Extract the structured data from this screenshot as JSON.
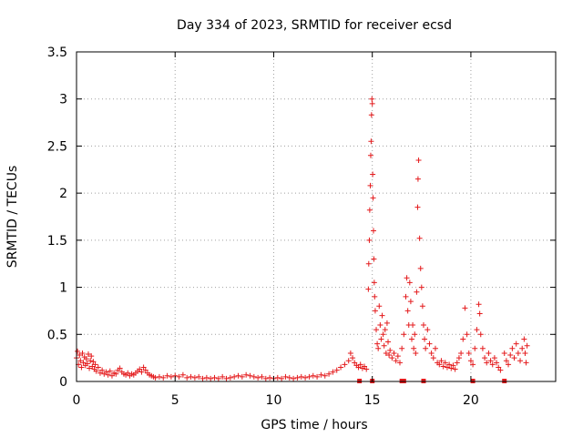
{
  "chart_data": {
    "type": "scatter",
    "title": "Day 334 of 2023, SRMTID for receiver ecsd",
    "xlabel": "GPS time / hours",
    "ylabel": "SRMTID / TECUs",
    "xlim": [
      0,
      24.3
    ],
    "ylim": [
      0,
      3.5
    ],
    "x_ticks": [
      0,
      5,
      10,
      15,
      20
    ],
    "x_tick_labels": [
      "0",
      "5",
      "10",
      "15",
      "20"
    ],
    "y_ticks": [
      0,
      0.5,
      1,
      1.5,
      2,
      2.5,
      3,
      3.5
    ],
    "y_tick_labels": [
      "0",
      "0.5",
      "1",
      "1.5",
      "2",
      "2.5",
      "3",
      "3.5"
    ],
    "grid": true,
    "marker": "+",
    "marker_color": "#e41a1c",
    "flag_color": "#e41a1c",
    "series": [
      {
        "name": "SRMTID",
        "points": [
          [
            0.0,
            0.25
          ],
          [
            0.05,
            0.32
          ],
          [
            0.1,
            0.18
          ],
          [
            0.15,
            0.28
          ],
          [
            0.2,
            0.22
          ],
          [
            0.25,
            0.15
          ],
          [
            0.3,
            0.3
          ],
          [
            0.35,
            0.2
          ],
          [
            0.4,
            0.26
          ],
          [
            0.45,
            0.17
          ],
          [
            0.5,
            0.24
          ],
          [
            0.55,
            0.19
          ],
          [
            0.6,
            0.29
          ],
          [
            0.65,
            0.14
          ],
          [
            0.7,
            0.22
          ],
          [
            0.75,
            0.27
          ],
          [
            0.8,
            0.16
          ],
          [
            0.85,
            0.21
          ],
          [
            0.9,
            0.13
          ],
          [
            0.95,
            0.18
          ],
          [
            1.0,
            0.11
          ],
          [
            1.1,
            0.15
          ],
          [
            1.2,
            0.09
          ],
          [
            1.3,
            0.12
          ],
          [
            1.4,
            0.08
          ],
          [
            1.5,
            0.1
          ],
          [
            1.6,
            0.07
          ],
          [
            1.7,
            0.11
          ],
          [
            1.8,
            0.06
          ],
          [
            1.9,
            0.09
          ],
          [
            2.0,
            0.08
          ],
          [
            2.1,
            0.12
          ],
          [
            2.2,
            0.14
          ],
          [
            2.3,
            0.1
          ],
          [
            2.4,
            0.08
          ],
          [
            2.5,
            0.07
          ],
          [
            2.6,
            0.09
          ],
          [
            2.7,
            0.06
          ],
          [
            2.8,
            0.08
          ],
          [
            2.9,
            0.07
          ],
          [
            3.0,
            0.09
          ],
          [
            3.1,
            0.11
          ],
          [
            3.2,
            0.13
          ],
          [
            3.3,
            0.1
          ],
          [
            3.4,
            0.15
          ],
          [
            3.5,
            0.12
          ],
          [
            3.6,
            0.09
          ],
          [
            3.7,
            0.07
          ],
          [
            3.8,
            0.06
          ],
          [
            3.9,
            0.05
          ],
          [
            4.0,
            0.04
          ],
          [
            4.2,
            0.05
          ],
          [
            4.4,
            0.04
          ],
          [
            4.6,
            0.06
          ],
          [
            4.8,
            0.05
          ],
          [
            5.0,
            0.06
          ],
          [
            5.2,
            0.05
          ],
          [
            5.4,
            0.07
          ],
          [
            5.6,
            0.04
          ],
          [
            5.8,
            0.05
          ],
          [
            6.0,
            0.04
          ],
          [
            6.2,
            0.05
          ],
          [
            6.4,
            0.03
          ],
          [
            6.6,
            0.04
          ],
          [
            6.8,
            0.03
          ],
          [
            7.0,
            0.04
          ],
          [
            7.2,
            0.03
          ],
          [
            7.4,
            0.05
          ],
          [
            7.6,
            0.03
          ],
          [
            7.8,
            0.04
          ],
          [
            8.0,
            0.05
          ],
          [
            8.2,
            0.06
          ],
          [
            8.4,
            0.05
          ],
          [
            8.6,
            0.07
          ],
          [
            8.8,
            0.06
          ],
          [
            9.0,
            0.05
          ],
          [
            9.2,
            0.04
          ],
          [
            9.4,
            0.05
          ],
          [
            9.6,
            0.03
          ],
          [
            9.8,
            0.04
          ],
          [
            10.0,
            0.03
          ],
          [
            10.2,
            0.04
          ],
          [
            10.4,
            0.03
          ],
          [
            10.6,
            0.05
          ],
          [
            10.8,
            0.04
          ],
          [
            11.0,
            0.03
          ],
          [
            11.2,
            0.04
          ],
          [
            11.4,
            0.05
          ],
          [
            11.6,
            0.04
          ],
          [
            11.8,
            0.05
          ],
          [
            12.0,
            0.06
          ],
          [
            12.2,
            0.05
          ],
          [
            12.4,
            0.07
          ],
          [
            12.6,
            0.06
          ],
          [
            12.8,
            0.08
          ],
          [
            13.0,
            0.1
          ],
          [
            13.2,
            0.12
          ],
          [
            13.4,
            0.15
          ],
          [
            13.6,
            0.18
          ],
          [
            13.8,
            0.22
          ],
          [
            13.9,
            0.3
          ],
          [
            14.0,
            0.25
          ],
          [
            14.1,
            0.2
          ],
          [
            14.2,
            0.17
          ],
          [
            14.3,
            0.15
          ],
          [
            14.4,
            0.18
          ],
          [
            14.5,
            0.14
          ],
          [
            14.6,
            0.16
          ],
          [
            14.7,
            0.13
          ],
          [
            14.8,
            0.98
          ],
          [
            14.82,
            1.25
          ],
          [
            14.85,
            1.5
          ],
          [
            14.87,
            1.82
          ],
          [
            14.9,
            2.08
          ],
          [
            14.92,
            2.4
          ],
          [
            14.94,
            2.55
          ],
          [
            14.96,
            2.83
          ],
          [
            14.98,
            3.0
          ],
          [
            15.0,
            2.95
          ],
          [
            15.02,
            2.2
          ],
          [
            15.04,
            1.95
          ],
          [
            15.06,
            1.6
          ],
          [
            15.08,
            1.3
          ],
          [
            15.1,
            1.05
          ],
          [
            15.12,
            0.9
          ],
          [
            15.15,
            0.75
          ],
          [
            15.2,
            0.55
          ],
          [
            15.25,
            0.4
          ],
          [
            15.3,
            0.35
          ],
          [
            15.35,
            0.8
          ],
          [
            15.4,
            0.6
          ],
          [
            15.45,
            0.45
          ],
          [
            15.5,
            0.7
          ],
          [
            15.55,
            0.5
          ],
          [
            15.6,
            0.38
          ],
          [
            15.65,
            0.55
          ],
          [
            15.7,
            0.3
          ],
          [
            15.75,
            0.62
          ],
          [
            15.8,
            0.42
          ],
          [
            15.85,
            0.28
          ],
          [
            15.9,
            0.33
          ],
          [
            16.0,
            0.25
          ],
          [
            16.1,
            0.3
          ],
          [
            16.2,
            0.22
          ],
          [
            16.3,
            0.27
          ],
          [
            16.4,
            0.2
          ],
          [
            16.5,
            0.35
          ],
          [
            16.6,
            0.5
          ],
          [
            16.7,
            0.9
          ],
          [
            16.75,
            1.1
          ],
          [
            16.8,
            0.75
          ],
          [
            16.85,
            0.6
          ],
          [
            16.9,
            1.05
          ],
          [
            16.95,
            0.85
          ],
          [
            17.0,
            0.45
          ],
          [
            17.05,
            0.6
          ],
          [
            17.1,
            0.35
          ],
          [
            17.15,
            0.5
          ],
          [
            17.2,
            0.3
          ],
          [
            17.25,
            0.95
          ],
          [
            17.3,
            1.85
          ],
          [
            17.32,
            2.15
          ],
          [
            17.35,
            2.35
          ],
          [
            17.4,
            1.52
          ],
          [
            17.45,
            1.2
          ],
          [
            17.5,
            1.0
          ],
          [
            17.55,
            0.8
          ],
          [
            17.6,
            0.6
          ],
          [
            17.65,
            0.45
          ],
          [
            17.7,
            0.35
          ],
          [
            17.8,
            0.55
          ],
          [
            17.9,
            0.4
          ],
          [
            18.0,
            0.3
          ],
          [
            18.1,
            0.25
          ],
          [
            18.2,
            0.35
          ],
          [
            18.3,
            0.2
          ],
          [
            18.4,
            0.18
          ],
          [
            18.5,
            0.22
          ],
          [
            18.6,
            0.16
          ],
          [
            18.7,
            0.2
          ],
          [
            18.8,
            0.15
          ],
          [
            18.9,
            0.18
          ],
          [
            19.0,
            0.14
          ],
          [
            19.1,
            0.17
          ],
          [
            19.2,
            0.13
          ],
          [
            19.3,
            0.2
          ],
          [
            19.4,
            0.25
          ],
          [
            19.5,
            0.3
          ],
          [
            19.6,
            0.45
          ],
          [
            19.7,
            0.78
          ],
          [
            19.8,
            0.5
          ],
          [
            19.9,
            0.3
          ],
          [
            20.0,
            0.22
          ],
          [
            20.1,
            0.18
          ],
          [
            20.2,
            0.35
          ],
          [
            20.3,
            0.55
          ],
          [
            20.4,
            0.82
          ],
          [
            20.45,
            0.72
          ],
          [
            20.5,
            0.5
          ],
          [
            20.6,
            0.35
          ],
          [
            20.7,
            0.25
          ],
          [
            20.8,
            0.2
          ],
          [
            20.9,
            0.3
          ],
          [
            21.0,
            0.22
          ],
          [
            21.1,
            0.18
          ],
          [
            21.2,
            0.25
          ],
          [
            21.3,
            0.2
          ],
          [
            21.4,
            0.15
          ],
          [
            21.5,
            0.12
          ],
          [
            21.7,
            0.3
          ],
          [
            21.8,
            0.22
          ],
          [
            21.9,
            0.18
          ],
          [
            22.0,
            0.28
          ],
          [
            22.1,
            0.35
          ],
          [
            22.2,
            0.25
          ],
          [
            22.3,
            0.4
          ],
          [
            22.4,
            0.3
          ],
          [
            22.5,
            0.22
          ],
          [
            22.6,
            0.35
          ],
          [
            22.7,
            0.45
          ],
          [
            22.75,
            0.3
          ],
          [
            22.8,
            0.2
          ],
          [
            22.85,
            0.38
          ]
        ]
      }
    ],
    "flags": [
      14.35,
      15.0,
      16.5,
      16.6,
      17.6,
      20.1,
      21.7
    ]
  }
}
